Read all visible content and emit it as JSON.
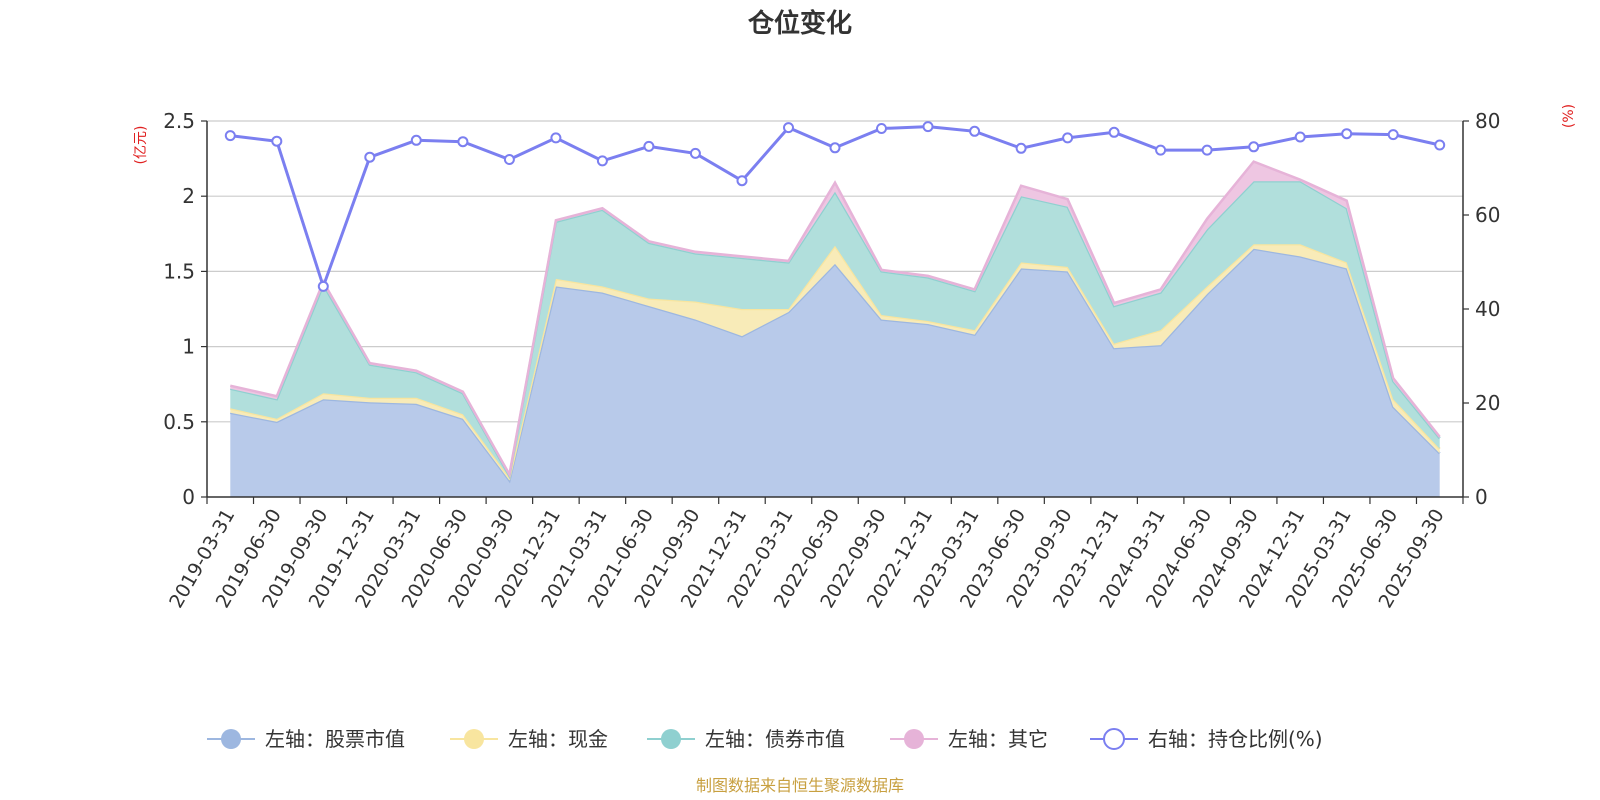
{
  "chart_data": {
    "type": "area",
    "title": "仓位变化",
    "left_axis_unit": "(亿元)",
    "right_axis_unit": "(%)",
    "left_ylim": [
      0,
      2.5
    ],
    "left_ticks": [
      "0",
      "0.5",
      "1",
      "1.5",
      "2",
      "2.5"
    ],
    "right_ylim": [
      0,
      80
    ],
    "right_ticks": [
      "0",
      "20",
      "40",
      "60",
      "80"
    ],
    "categories": [
      "2019-03-31",
      "2019-06-30",
      "2019-09-30",
      "2019-12-31",
      "2020-03-31",
      "2020-06-30",
      "2020-09-30",
      "2020-12-31",
      "2021-03-31",
      "2021-06-30",
      "2021-09-30",
      "2021-12-31",
      "2022-03-31",
      "2022-06-30",
      "2022-09-30",
      "2022-12-31",
      "2023-03-31",
      "2023-06-30",
      "2023-09-30",
      "2023-12-31",
      "2024-03-31",
      "2024-06-30",
      "2024-09-30",
      "2024-12-31",
      "2025-03-31",
      "2025-06-30",
      "2025-09-30"
    ],
    "series": [
      {
        "name": "左轴：股票市值",
        "axis": "left",
        "stacked": true,
        "color": "#9db7e0",
        "fill": "#b8caea",
        "values": [
          0.56,
          0.5,
          0.65,
          0.63,
          0.62,
          0.52,
          0.11,
          1.4,
          1.36,
          1.27,
          1.18,
          1.07,
          1.23,
          1.55,
          1.18,
          1.15,
          1.08,
          1.52,
          1.5,
          0.99,
          1.01,
          1.35,
          1.65,
          1.6,
          1.52,
          0.6,
          0.29
        ]
      },
      {
        "name": "左轴：现金",
        "axis": "left",
        "stacked": true,
        "color": "#f8e59f",
        "fill": "#f8ebb8",
        "values": [
          0.03,
          0.02,
          0.04,
          0.03,
          0.04,
          0.03,
          0.02,
          0.05,
          0.04,
          0.05,
          0.12,
          0.18,
          0.02,
          0.12,
          0.03,
          0.02,
          0.03,
          0.04,
          0.03,
          0.03,
          0.1,
          0.05,
          0.03,
          0.08,
          0.04,
          0.05,
          0.03
        ]
      },
      {
        "name": "左轴：债券市值",
        "axis": "left",
        "stacked": true,
        "color": "#8fd0d0",
        "fill": "#b1dfdc",
        "values": [
          0.13,
          0.13,
          0.72,
          0.22,
          0.17,
          0.14,
          0.01,
          0.38,
          0.51,
          0.37,
          0.32,
          0.34,
          0.31,
          0.36,
          0.29,
          0.29,
          0.26,
          0.44,
          0.4,
          0.25,
          0.25,
          0.38,
          0.42,
          0.42,
          0.36,
          0.12,
          0.07
        ]
      },
      {
        "name": "左轴：其它",
        "axis": "left",
        "stacked": true,
        "color": "#e6b3d8",
        "fill": "#eec6e2",
        "values": [
          0.02,
          0.02,
          0.02,
          0.01,
          0.01,
          0.01,
          0.01,
          0.01,
          0.01,
          0.01,
          0.01,
          0.01,
          0.01,
          0.06,
          0.01,
          0.01,
          0.01,
          0.07,
          0.05,
          0.02,
          0.02,
          0.07,
          0.13,
          0.01,
          0.05,
          0.02,
          0.01
        ]
      },
      {
        "name": "右轴：持仓比例(%)",
        "axis": "right",
        "stacked": false,
        "color": "#7b7ff0",
        "values": [
          76.9,
          75.7,
          44.8,
          72.3,
          75.9,
          75.6,
          71.8,
          76.4,
          71.5,
          74.6,
          73.1,
          67.3,
          78.6,
          74.3,
          78.4,
          78.8,
          77.8,
          74.2,
          76.4,
          77.6,
          73.8,
          73.8,
          74.5,
          76.6,
          77.3,
          77.1,
          74.9
        ]
      }
    ]
  },
  "legend": [
    {
      "label": "左轴：股票市值"
    },
    {
      "label": "左轴：现金"
    },
    {
      "label": "左轴：债券市值"
    },
    {
      "label": "左轴：其它"
    },
    {
      "label": "右轴：持仓比例(%)"
    }
  ],
  "footer": {
    "source": "制图数据来自恒生聚源数据库"
  },
  "colors": {
    "axis_unit": "#e02020",
    "source": "#c8a040",
    "grid": "#cccccc",
    "axis": "#333333"
  }
}
